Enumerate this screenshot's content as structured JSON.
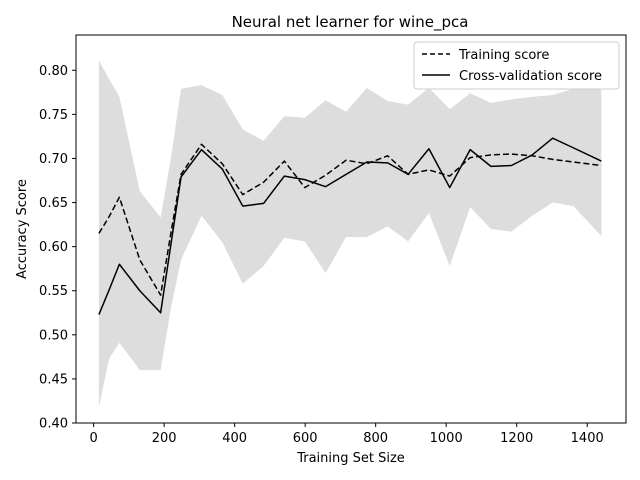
{
  "chart_data": {
    "type": "line",
    "title": "Neural net learner for wine_pca",
    "xlabel": "Training Set Size",
    "ylabel": "Accuracy Score",
    "xlim": [
      -50,
      1510
    ],
    "ylim": [
      0.4,
      0.84
    ],
    "xticks": [
      0,
      200,
      400,
      600,
      800,
      1000,
      1200,
      1400
    ],
    "yticks": [
      0.4,
      0.45,
      0.5,
      0.55,
      0.6,
      0.65,
      0.7,
      0.75,
      0.8
    ],
    "xtick_labels": [
      "0",
      "200",
      "400",
      "600",
      "800",
      "1000",
      "1200",
      "1400"
    ],
    "ytick_labels": [
      "0.40",
      "0.45",
      "0.50",
      "0.55",
      "0.60",
      "0.65",
      "0.70",
      "0.75",
      "0.80"
    ],
    "grid": false,
    "legend_position": "top-right",
    "x": [
      15,
      44,
      73,
      131,
      190,
      219,
      248,
      306,
      365,
      423,
      482,
      541,
      599,
      658,
      716,
      775,
      834,
      892,
      951,
      1010,
      1068,
      1127,
      1185,
      1244,
      1302,
      1361,
      1440
    ],
    "series": [
      {
        "name": "Training score",
        "style": "dashed",
        "values": [
          0.615,
          0.634,
          0.656,
          0.585,
          0.545,
          0.615,
          0.682,
          0.716,
          0.694,
          0.659,
          0.673,
          0.697,
          0.667,
          0.681,
          0.698,
          0.694,
          0.703,
          0.682,
          0.687,
          0.68,
          0.701,
          0.704,
          0.705,
          0.703,
          0.699,
          0.696,
          0.692
        ]
      },
      {
        "name": "Cross-validation score",
        "style": "solid",
        "values": [
          0.523,
          0.551,
          0.58,
          0.55,
          0.525,
          0.602,
          0.679,
          0.71,
          0.688,
          0.646,
          0.649,
          0.68,
          0.676,
          0.668,
          0.682,
          0.696,
          0.695,
          0.682,
          0.711,
          0.667,
          0.71,
          0.691,
          0.692,
          0.704,
          0.723,
          0.712,
          0.697
        ]
      }
    ],
    "band": {
      "color": "#dddddd",
      "upper": [
        0.811,
        0.79,
        0.77,
        0.663,
        0.633,
        0.7,
        0.779,
        0.783,
        0.772,
        0.733,
        0.72,
        0.748,
        0.746,
        0.766,
        0.753,
        0.78,
        0.765,
        0.761,
        0.78,
        0.756,
        0.774,
        0.763,
        0.767,
        0.77,
        0.772,
        0.779,
        0.778
      ],
      "lower": [
        0.418,
        0.473,
        0.491,
        0.46,
        0.46,
        0.53,
        0.585,
        0.635,
        0.605,
        0.558,
        0.578,
        0.61,
        0.606,
        0.57,
        0.611,
        0.611,
        0.623,
        0.606,
        0.638,
        0.578,
        0.645,
        0.62,
        0.617,
        0.635,
        0.65,
        0.646,
        0.612
      ]
    }
  }
}
